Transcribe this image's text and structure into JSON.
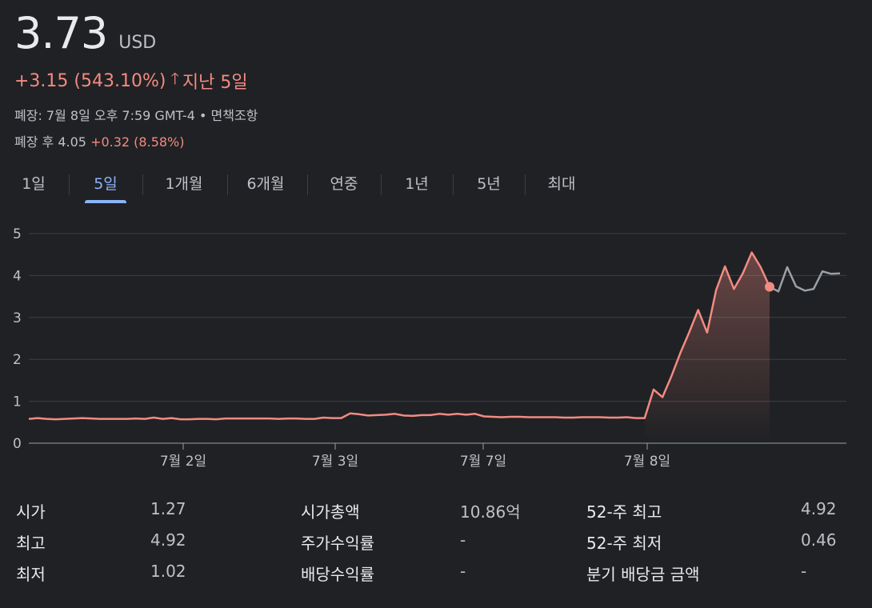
{
  "header": {
    "price": "3.73",
    "currency": "USD",
    "change": "+3.15 (543.10%)",
    "arrow": "🡑",
    "period": "지난 5일",
    "close_info": "폐장: 7월 8일 오후 7:59 GMT-4 • 면책조항",
    "after_hours_label": "폐장 후 4.05",
    "after_hours_change": "+0.32 (8.58%)"
  },
  "tabs": [
    {
      "label": "1일",
      "active": false
    },
    {
      "label": "5일",
      "active": true
    },
    {
      "label": "1개월",
      "active": false
    },
    {
      "label": "6개월",
      "active": false
    },
    {
      "label": "연중",
      "active": false
    },
    {
      "label": "1년",
      "active": false
    },
    {
      "label": "5년",
      "active": false
    },
    {
      "label": "최대",
      "active": false
    }
  ],
  "chart_data": {
    "type": "line",
    "ylim": [
      0,
      5
    ],
    "yticks": [
      "0",
      "1",
      "2",
      "3",
      "4",
      "5"
    ],
    "xticks": [
      "7월 2일",
      "7월 3일",
      "7월 7일",
      "7월 8일"
    ],
    "grid": true,
    "series": [
      {
        "color": "#f28b82",
        "values": [
          0.58,
          0.6,
          0.58,
          0.57,
          0.58,
          0.59,
          0.6,
          0.59,
          0.58,
          0.58,
          0.58,
          0.58,
          0.59,
          0.58,
          0.61,
          0.58,
          0.6,
          0.57,
          0.57,
          0.58,
          0.58,
          0.57,
          0.59,
          0.59,
          0.59,
          0.59,
          0.59,
          0.59,
          0.58,
          0.59,
          0.59,
          0.58,
          0.58,
          0.61,
          0.6,
          0.6,
          0.71,
          0.69,
          0.66,
          0.67,
          0.68,
          0.7,
          0.66,
          0.65,
          0.67,
          0.67,
          0.7,
          0.68,
          0.7,
          0.68,
          0.7,
          0.64,
          0.63,
          0.62,
          0.63,
          0.63,
          0.62,
          0.62,
          0.62,
          0.62,
          0.61,
          0.61,
          0.62,
          0.62,
          0.62,
          0.61,
          0.61,
          0.62,
          0.6,
          0.6,
          1.28,
          1.1,
          1.6,
          2.15,
          2.65,
          3.18,
          2.64,
          3.65,
          4.22,
          3.68,
          4.05,
          4.55,
          4.2,
          3.73
        ]
      },
      {
        "color": "#9aa0a6",
        "values": [
          3.73,
          3.62,
          4.2,
          3.74,
          3.64,
          3.68,
          4.1,
          4.04,
          4.05
        ]
      }
    ],
    "last_close": 3.73
  },
  "stats": [
    {
      "label": "시가",
      "value": "1.27"
    },
    {
      "label": "최고",
      "value": "4.92"
    },
    {
      "label": "최저",
      "value": "1.02"
    },
    {
      "label": "시가총액",
      "value": "10.86억"
    },
    {
      "label": "주가수익률",
      "value": "-"
    },
    {
      "label": "배당수익률",
      "value": "-"
    },
    {
      "label": "52-주 최고",
      "value": "4.92"
    },
    {
      "label": "52-주 최저",
      "value": "0.46"
    },
    {
      "label": "분기 배당금 금액",
      "value": "-"
    }
  ]
}
